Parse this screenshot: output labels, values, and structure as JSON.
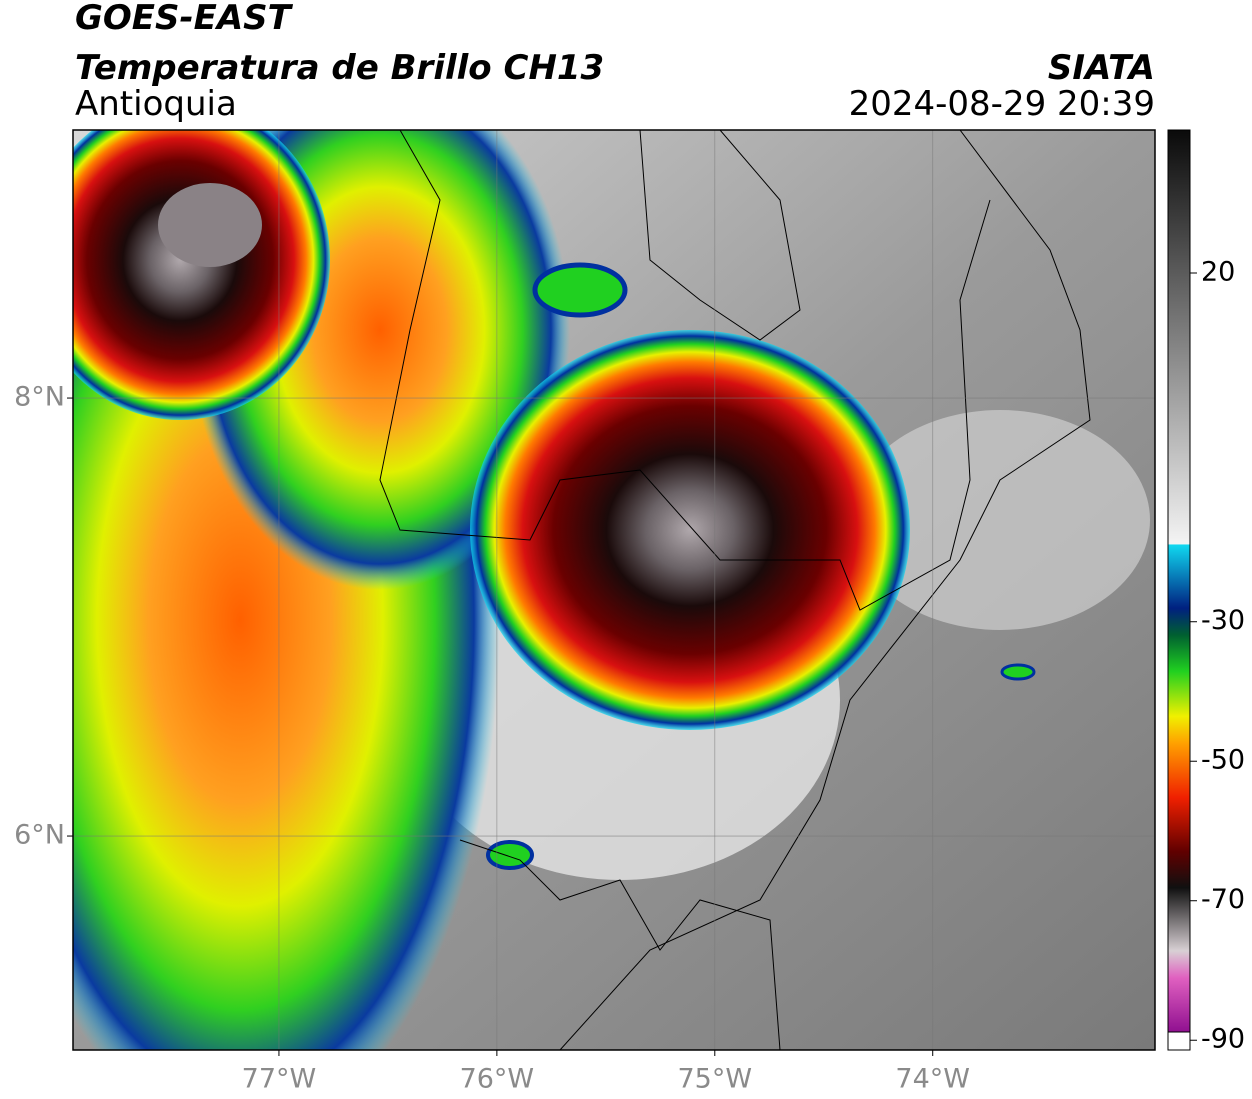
{
  "header": {
    "satellite": "GOES-EAST",
    "product": "Temperatura de Brillo CH13",
    "region": "Antioquia",
    "source": "SIATA",
    "datetime": "2024-08-29 20:39"
  },
  "map": {
    "xlim": [
      -77.945,
      -72.98
    ],
    "ylim": [
      5.023,
      9.224
    ],
    "xticks": [
      {
        "value": -77,
        "label": "77°W"
      },
      {
        "value": -76,
        "label": "76°W"
      },
      {
        "value": -75,
        "label": "75°W"
      },
      {
        "value": -74,
        "label": "74°W"
      }
    ],
    "yticks": [
      {
        "value": 8,
        "label": "8°N"
      },
      {
        "value": 6,
        "label": "6°N"
      }
    ],
    "grid": true
  },
  "colorbar": {
    "lim": [
      -91.4,
      40.5
    ],
    "ticks": [
      20,
      -30,
      -50,
      -70,
      -90
    ]
  }
}
